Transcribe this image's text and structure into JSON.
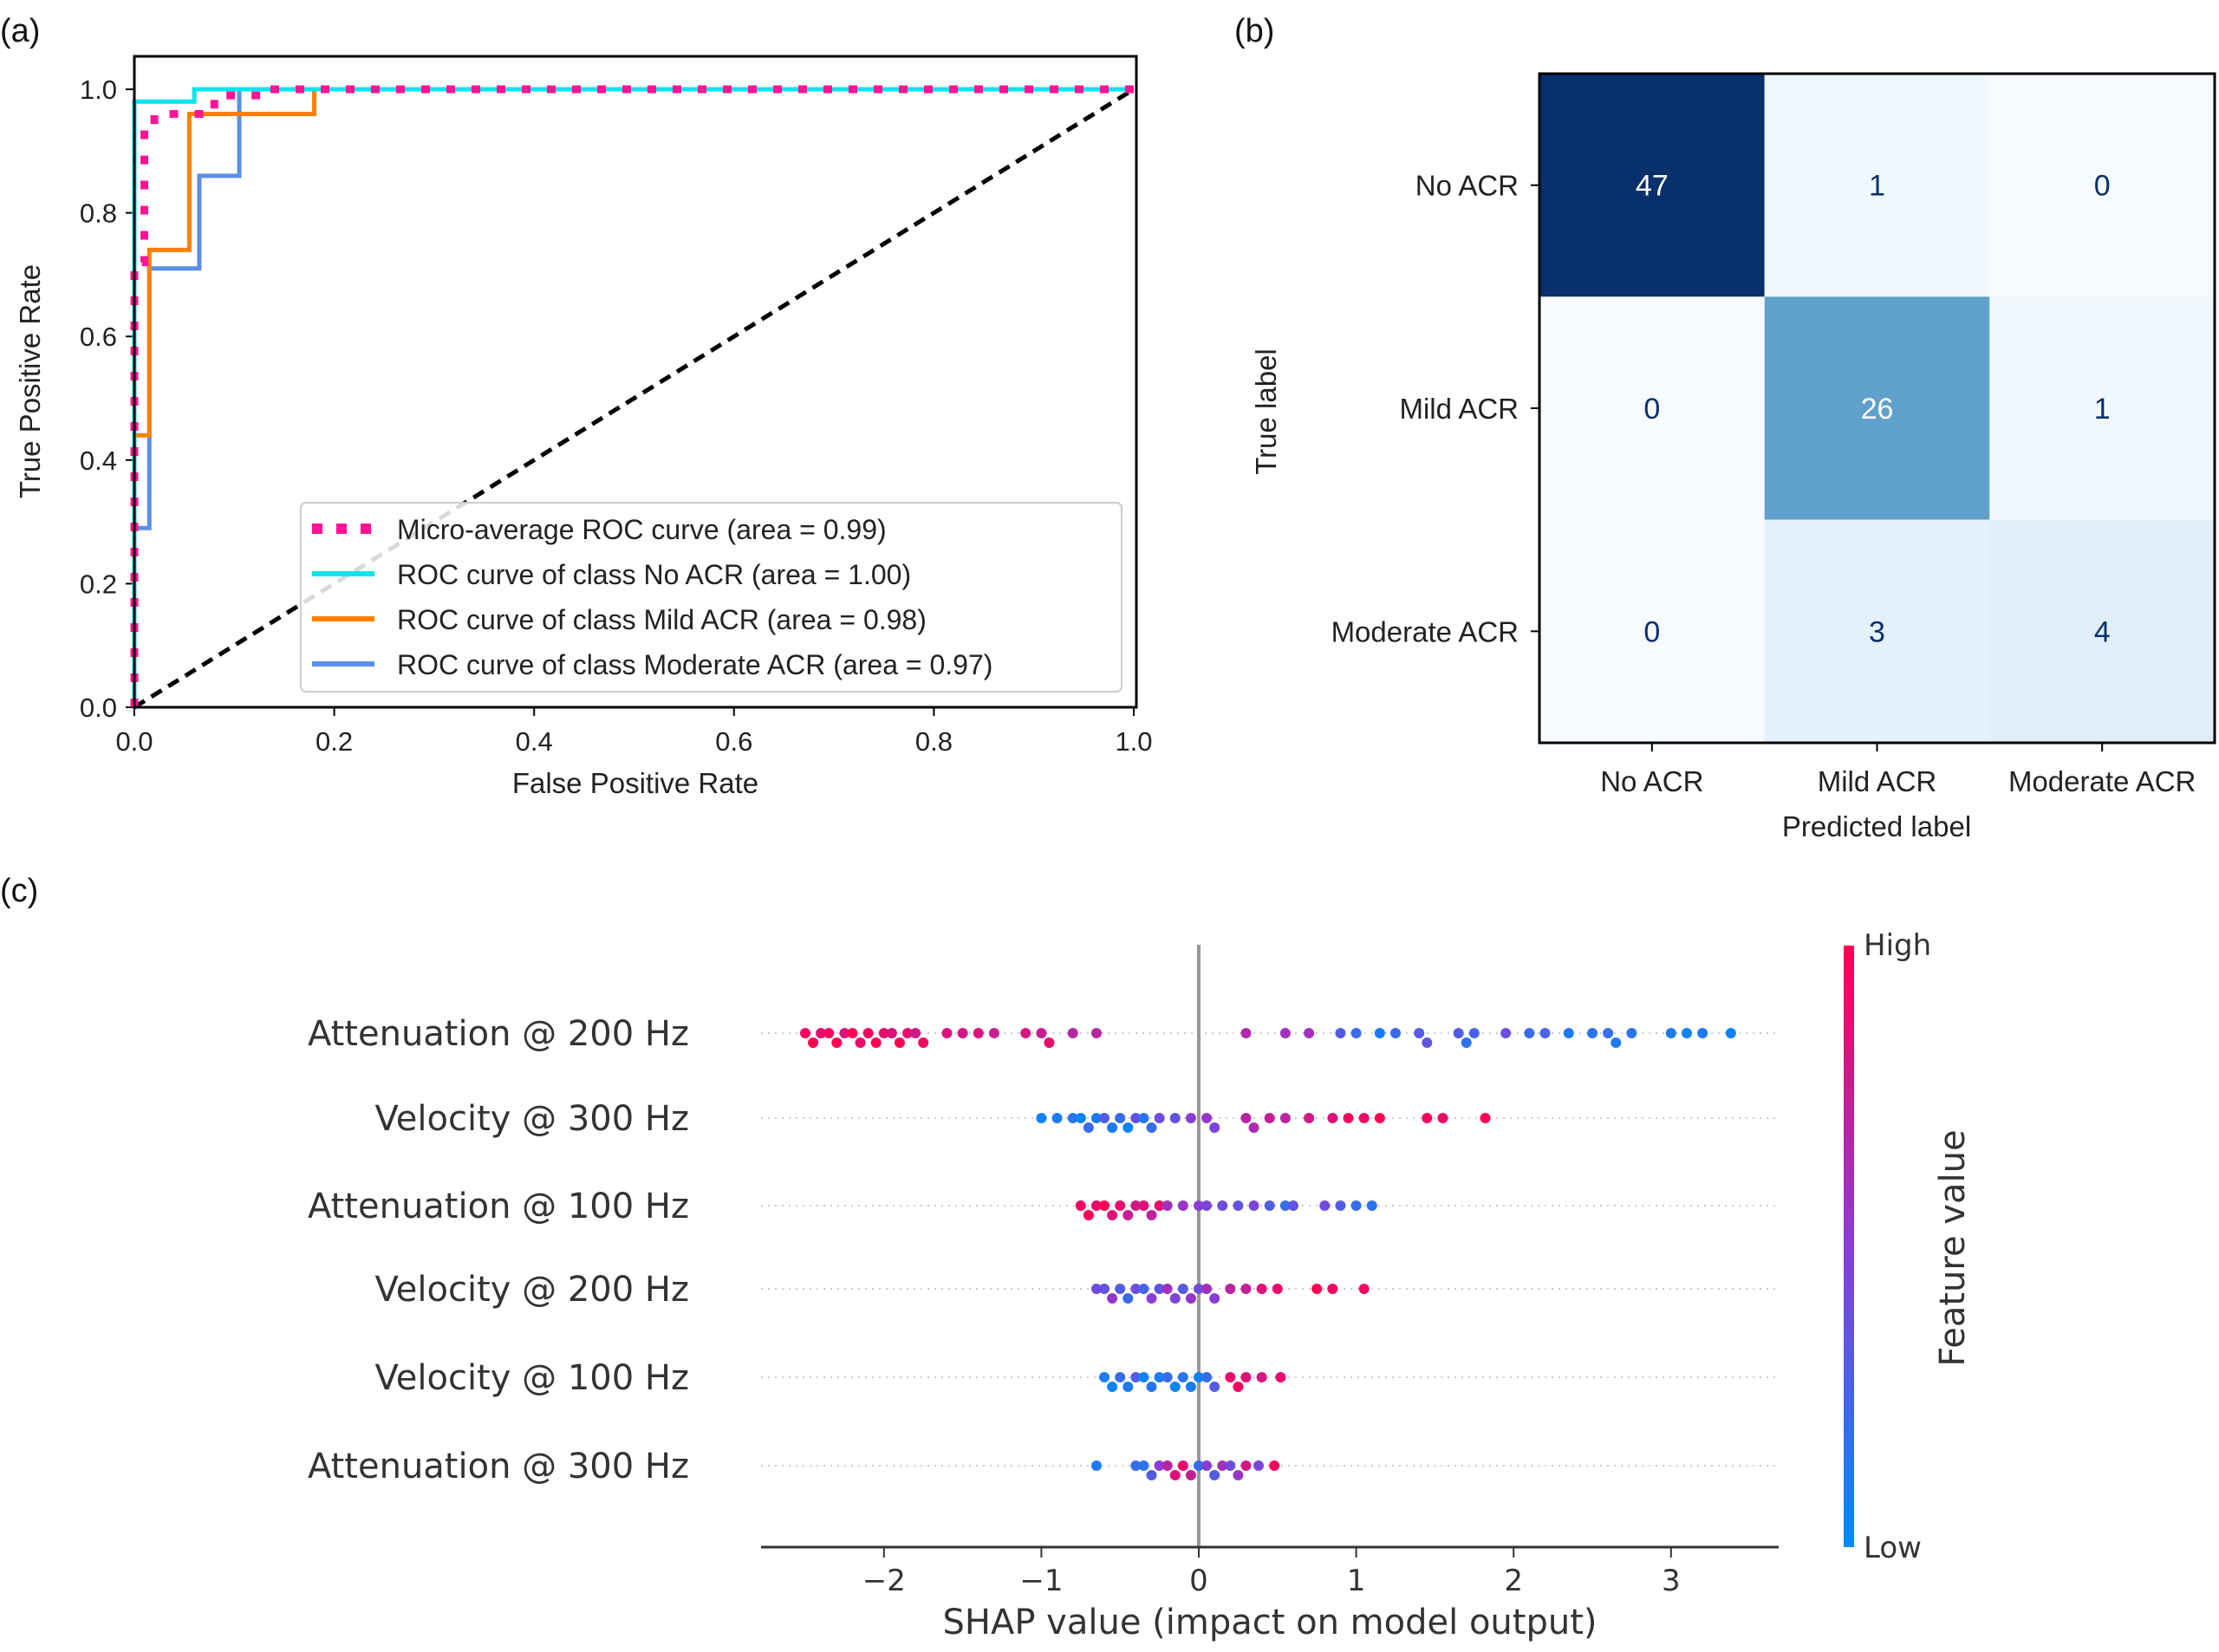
{
  "chart_data": [
    {
      "panel": "(a)",
      "type": "line",
      "xlabel": "False Positive Rate",
      "ylabel": "True Positive Rate",
      "xlim": [
        0,
        1
      ],
      "ylim": [
        0,
        1.05
      ],
      "xticks": [
        "0.0",
        "0.2",
        "0.4",
        "0.6",
        "0.8",
        "1.0"
      ],
      "yticks": [
        "0.0",
        "0.2",
        "0.4",
        "0.6",
        "0.8",
        "1.0"
      ],
      "legend_position": "lower-right",
      "series": [
        {
          "name": "Micro-average ROC curve (area = 0.99)",
          "color": "#ff1493",
          "style": "dotted",
          "x": [
            0,
            0,
            0.01,
            0.01,
            0.02,
            0.02,
            0.08,
            0.08,
            0.13,
            0.13,
            1
          ],
          "y": [
            0,
            0.72,
            0.72,
            0.95,
            0.95,
            0.96,
            0.96,
            0.99,
            0.99,
            1,
            1
          ]
        },
        {
          "name": "ROC curve of class No ACR (area = 1.00)",
          "color": "#00e5ee",
          "style": "solid",
          "x": [
            0,
            0,
            0.06,
            0.06,
            1
          ],
          "y": [
            0,
            0.98,
            0.98,
            1,
            1
          ]
        },
        {
          "name": "ROC curve of class Mild ACR (area = 0.98)",
          "color": "#ff8000",
          "style": "solid",
          "x": [
            0,
            0,
            0.015,
            0.015,
            0.055,
            0.055,
            0.18,
            0.18,
            1
          ],
          "y": [
            0,
            0.44,
            0.44,
            0.74,
            0.74,
            0.96,
            0.96,
            1,
            1
          ]
        },
        {
          "name": "ROC curve of class Moderate ACR (area = 0.97)",
          "color": "#5b8fe8",
          "style": "solid",
          "x": [
            0,
            0,
            0.015,
            0.015,
            0.065,
            0.065,
            0.105,
            0.105,
            1
          ],
          "y": [
            0,
            0.29,
            0.29,
            0.71,
            0.71,
            0.86,
            0.86,
            1,
            1
          ]
        }
      ],
      "diagonal": {
        "color": "#000000",
        "style": "dashed"
      }
    },
    {
      "panel": "(b)",
      "type": "heatmap",
      "xlabel": "Predicted label",
      "ylabel": "True label",
      "categories": [
        "No ACR",
        "Mild ACR",
        "Moderate ACR"
      ],
      "values": [
        [
          47,
          1,
          0
        ],
        [
          0,
          26,
          1
        ],
        [
          0,
          3,
          4
        ]
      ],
      "colormap": "Blues"
    },
    {
      "panel": "(c)",
      "type": "scatter",
      "xlabel": "SHAP value (impact on model output)",
      "xlim": [
        -2.8,
        3.7
      ],
      "xticks": [
        "−2",
        "−1",
        "0",
        "1",
        "2",
        "3"
      ],
      "xtick_values": [
        -2,
        -1,
        0,
        1,
        2,
        3
      ],
      "colorbar": {
        "label": "Feature value",
        "high": "High",
        "low": "Low",
        "low_color": "#008bfb",
        "high_color": "#ff0052"
      },
      "features": [
        {
          "name": "Attenuation @ 200 Hz",
          "points": [
            [
              -2.5,
              0.95
            ],
            [
              -2.45,
              1
            ],
            [
              -2.4,
              0.9
            ],
            [
              -2.35,
              0.95
            ],
            [
              -2.3,
              1
            ],
            [
              -2.25,
              0.85
            ],
            [
              -2.2,
              1
            ],
            [
              -2.15,
              0.9
            ],
            [
              -2.1,
              0.95
            ],
            [
              -2.05,
              1
            ],
            [
              -2.0,
              0.9
            ],
            [
              -1.95,
              0.85
            ],
            [
              -1.9,
              1
            ],
            [
              -1.85,
              0.9
            ],
            [
              -1.8,
              0.8
            ],
            [
              -1.75,
              0.95
            ],
            [
              -1.6,
              0.85
            ],
            [
              -1.5,
              0.8
            ],
            [
              -1.4,
              0.85
            ],
            [
              -1.3,
              0.75
            ],
            [
              -1.1,
              0.8
            ],
            [
              -1.0,
              0.75
            ],
            [
              -0.95,
              0.9
            ],
            [
              -0.8,
              0.7
            ],
            [
              -0.65,
              0.7
            ],
            [
              0.3,
              0.65
            ],
            [
              0.55,
              0.6
            ],
            [
              0.7,
              0.6
            ],
            [
              0.9,
              0.3
            ],
            [
              1.0,
              0.2
            ],
            [
              1.15,
              0.1
            ],
            [
              1.25,
              0.2
            ],
            [
              1.4,
              0.3
            ],
            [
              1.45,
              0.35
            ],
            [
              1.65,
              0.3
            ],
            [
              1.7,
              0.15
            ],
            [
              1.75,
              0.25
            ],
            [
              1.95,
              0.4
            ],
            [
              2.1,
              0.2
            ],
            [
              2.2,
              0.25
            ],
            [
              2.35,
              0.1
            ],
            [
              2.5,
              0.15
            ],
            [
              2.6,
              0.2
            ],
            [
              2.65,
              0.1
            ],
            [
              2.75,
              0.15
            ],
            [
              3.0,
              0.1
            ],
            [
              3.1,
              0.05
            ],
            [
              3.2,
              0.1
            ],
            [
              3.38,
              0.05
            ]
          ]
        },
        {
          "name": "Velocity @ 300 Hz",
          "points": [
            [
              -1.0,
              0.05
            ],
            [
              -0.9,
              0.1
            ],
            [
              -0.8,
              0.15
            ],
            [
              -0.75,
              0.05
            ],
            [
              -0.7,
              0.2
            ],
            [
              -0.65,
              0.1
            ],
            [
              -0.6,
              0.3
            ],
            [
              -0.55,
              0.1
            ],
            [
              -0.5,
              0.2
            ],
            [
              -0.45,
              0.05
            ],
            [
              -0.4,
              0.35
            ],
            [
              -0.35,
              0.15
            ],
            [
              -0.3,
              0.2
            ],
            [
              -0.25,
              0.4
            ],
            [
              -0.15,
              0.35
            ],
            [
              -0.05,
              0.5
            ],
            [
              0.05,
              0.55
            ],
            [
              0.1,
              0.45
            ],
            [
              0.3,
              0.7
            ],
            [
              0.35,
              0.65
            ],
            [
              0.45,
              0.75
            ],
            [
              0.55,
              0.7
            ],
            [
              0.7,
              0.8
            ],
            [
              0.85,
              0.85
            ],
            [
              0.95,
              0.95
            ],
            [
              1.05,
              0.9
            ],
            [
              1.15,
              1
            ],
            [
              1.45,
              0.95
            ],
            [
              1.55,
              0.9
            ],
            [
              1.82,
              1
            ]
          ]
        },
        {
          "name": "Attenuation @ 100 Hz",
          "points": [
            [
              -0.75,
              0.95
            ],
            [
              -0.7,
              1
            ],
            [
              -0.65,
              0.9
            ],
            [
              -0.6,
              1
            ],
            [
              -0.55,
              0.85
            ],
            [
              -0.5,
              0.9
            ],
            [
              -0.45,
              0.75
            ],
            [
              -0.4,
              0.8
            ],
            [
              -0.35,
              0.85
            ],
            [
              -0.3,
              0.7
            ],
            [
              -0.25,
              0.9
            ],
            [
              -0.2,
              0.6
            ],
            [
              -0.1,
              0.55
            ],
            [
              0.0,
              0.5
            ],
            [
              0.05,
              0.45
            ],
            [
              0.15,
              0.4
            ],
            [
              0.25,
              0.35
            ],
            [
              0.35,
              0.45
            ],
            [
              0.45,
              0.3
            ],
            [
              0.55,
              0.2
            ],
            [
              0.6,
              0.35
            ],
            [
              0.8,
              0.4
            ],
            [
              0.9,
              0.3
            ],
            [
              1.0,
              0.2
            ],
            [
              1.1,
              0.15
            ]
          ]
        },
        {
          "name": "Velocity @ 200 Hz",
          "points": [
            [
              -0.65,
              0.4
            ],
            [
              -0.6,
              0.35
            ],
            [
              -0.55,
              0.55
            ],
            [
              -0.5,
              0.3
            ],
            [
              -0.45,
              0.2
            ],
            [
              -0.4,
              0.4
            ],
            [
              -0.35,
              0.25
            ],
            [
              -0.3,
              0.5
            ],
            [
              -0.25,
              0.35
            ],
            [
              -0.2,
              0.6
            ],
            [
              -0.15,
              0.45
            ],
            [
              -0.1,
              0.3
            ],
            [
              -0.05,
              0.55
            ],
            [
              0.0,
              0.4
            ],
            [
              0.05,
              0.6
            ],
            [
              0.1,
              0.5
            ],
            [
              0.2,
              0.7
            ],
            [
              0.3,
              0.75
            ],
            [
              0.4,
              0.85
            ],
            [
              0.5,
              0.9
            ],
            [
              0.75,
              1
            ],
            [
              0.85,
              0.95
            ],
            [
              1.05,
              0.95
            ]
          ]
        },
        {
          "name": "Velocity @ 100 Hz",
          "points": [
            [
              -0.6,
              0.1
            ],
            [
              -0.55,
              0.05
            ],
            [
              -0.5,
              0.2
            ],
            [
              -0.45,
              0.1
            ],
            [
              -0.4,
              0.3
            ],
            [
              -0.35,
              0.05
            ],
            [
              -0.3,
              0.15
            ],
            [
              -0.25,
              0.1
            ],
            [
              -0.2,
              0.2
            ],
            [
              -0.15,
              0.05
            ],
            [
              -0.1,
              0.15
            ],
            [
              -0.05,
              0.1
            ],
            [
              0.0,
              0.05
            ],
            [
              0.05,
              0.2
            ],
            [
              0.1,
              0.3
            ],
            [
              0.2,
              0.9
            ],
            [
              0.25,
              0.95
            ],
            [
              0.3,
              0.85
            ],
            [
              0.4,
              0.8
            ],
            [
              0.52,
              0.9
            ]
          ]
        },
        {
          "name": "Attenuation @ 300 Hz",
          "points": [
            [
              -0.65,
              0.1
            ],
            [
              -0.4,
              0.2
            ],
            [
              -0.35,
              0.15
            ],
            [
              -0.3,
              0.3
            ],
            [
              -0.25,
              0.5
            ],
            [
              -0.2,
              0.7
            ],
            [
              -0.15,
              0.85
            ],
            [
              -0.1,
              0.9
            ],
            [
              -0.05,
              0.75
            ],
            [
              0.0,
              0.2
            ],
            [
              0.05,
              0.5
            ],
            [
              0.1,
              0.3
            ],
            [
              0.15,
              0.6
            ],
            [
              0.2,
              0.4
            ],
            [
              0.25,
              0.55
            ],
            [
              0.3,
              0.8
            ],
            [
              0.38,
              0.45
            ],
            [
              0.48,
              0.95
            ]
          ]
        }
      ]
    }
  ]
}
